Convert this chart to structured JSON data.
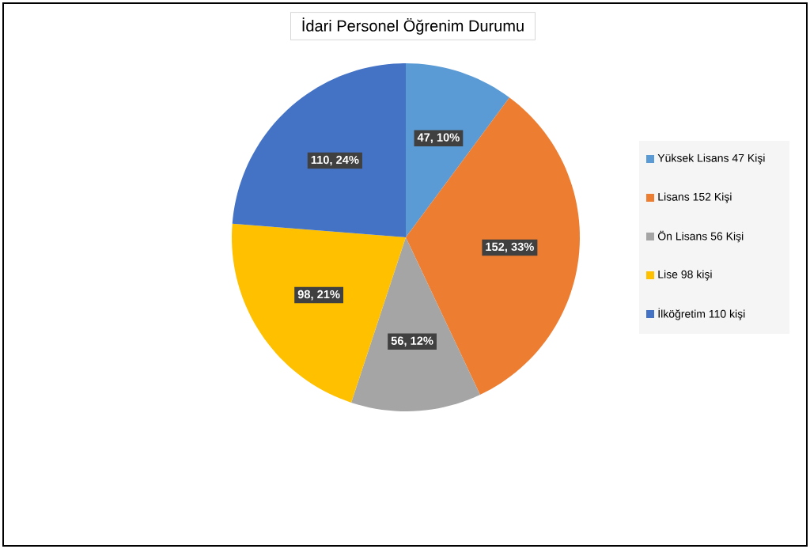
{
  "chart_data": {
    "type": "pie",
    "title": "İdari Personel Öğrenim Durumu",
    "categories": [
      "Yüksek Lisans 47 Kişi",
      "Lisans 152 Kişi",
      "Ön Lisans 56 Kişi",
      "Lise 98 kişi",
      "İlköğretim 110 kişi"
    ],
    "values": [
      47,
      152,
      56,
      98,
      110
    ],
    "colors": [
      "#5b9bd5",
      "#ed7d31",
      "#a5a5a5",
      "#ffc000",
      "#4472c4"
    ],
    "value_labels": [
      "47, 10%",
      "152, 33%",
      "56, 12%",
      "98, 21%",
      "110, 24%"
    ],
    "legend": "right"
  }
}
